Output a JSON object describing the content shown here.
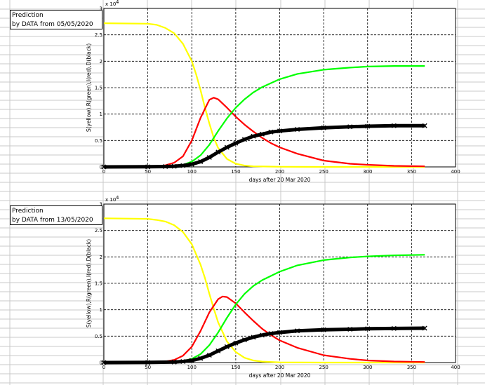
{
  "colors": {
    "susceptible": "#ffff00",
    "infected": "#ff0000",
    "recovered": "#00ff00",
    "deaths": "#000000",
    "sheet_grid": "#c8c8c8"
  },
  "chart_data": [
    {
      "type": "line",
      "note": [
        "Prediction",
        "by DATA from 05/05/2020"
      ],
      "xlabel": "days after 20  Mar 2020",
      "ylabel": "S(yellow),R(green),I(red),D(black)",
      "exponent_label": "x 10",
      "exponent_power": "4",
      "xlim": [
        0,
        400
      ],
      "ylim": [
        0,
        3
      ],
      "y_scale_factor": 10000,
      "xticks": [
        "0",
        "50",
        "100",
        "150",
        "200",
        "250",
        "300",
        "350",
        "400"
      ],
      "yticks": [
        "0",
        "0.5",
        "1",
        "1.5",
        "2",
        "2.5",
        "3"
      ],
      "grid": true,
      "series": [
        {
          "color": "#ffff00",
          "marker": "line",
          "x": [
            0,
            50,
            60,
            70,
            80,
            90,
            100,
            105,
            110,
            115,
            120,
            125,
            130,
            140,
            150,
            160,
            170,
            200,
            250,
            300,
            365
          ],
          "y": [
            2.72,
            2.71,
            2.69,
            2.63,
            2.53,
            2.33,
            2.0,
            1.75,
            1.45,
            1.12,
            0.82,
            0.55,
            0.36,
            0.15,
            0.06,
            0.025,
            0.01,
            0.002,
            0,
            0,
            0
          ]
        },
        {
          "color": "#ff0000",
          "marker": "line",
          "x": [
            0,
            50,
            60,
            70,
            80,
            90,
            100,
            110,
            120,
            125,
            130,
            140,
            150,
            160,
            170,
            180,
            190,
            200,
            220,
            250,
            280,
            300,
            330,
            365
          ],
          "y": [
            0,
            0.005,
            0.01,
            0.03,
            0.08,
            0.2,
            0.5,
            0.93,
            1.27,
            1.31,
            1.28,
            1.12,
            0.95,
            0.8,
            0.67,
            0.55,
            0.45,
            0.37,
            0.25,
            0.12,
            0.06,
            0.04,
            0.02,
            0.01
          ]
        },
        {
          "color": "#00ff00",
          "marker": "line",
          "x": [
            0,
            50,
            70,
            80,
            90,
            100,
            110,
            120,
            130,
            140,
            150,
            160,
            170,
            180,
            200,
            220,
            250,
            280,
            300,
            330,
            365
          ],
          "y": [
            0,
            0.003,
            0.01,
            0.02,
            0.04,
            0.1,
            0.22,
            0.42,
            0.68,
            0.92,
            1.12,
            1.28,
            1.41,
            1.51,
            1.66,
            1.76,
            1.84,
            1.88,
            1.9,
            1.91,
            1.91
          ]
        },
        {
          "color": "#000000",
          "marker": "cross",
          "x": [
            0,
            50,
            70,
            80,
            90,
            100,
            110,
            120,
            130,
            140,
            150,
            160,
            170,
            180,
            190,
            200,
            220,
            250,
            280,
            300,
            330,
            365
          ],
          "y": [
            0,
            0.002,
            0.006,
            0.012,
            0.025,
            0.05,
            0.1,
            0.18,
            0.28,
            0.37,
            0.45,
            0.52,
            0.58,
            0.62,
            0.66,
            0.68,
            0.71,
            0.74,
            0.76,
            0.77,
            0.78,
            0.78
          ]
        }
      ]
    },
    {
      "type": "line",
      "note": [
        "Prediction",
        "by DATA from 13/05/2020"
      ],
      "xlabel": "days after 20  Mar 2020",
      "ylabel": "S(yellow),R(green),I(red),D(black)",
      "exponent_label": "x 10",
      "exponent_power": "4",
      "xlim": [
        0,
        400
      ],
      "ylim": [
        0,
        3
      ],
      "y_scale_factor": 10000,
      "xticks": [
        "0",
        "50",
        "100",
        "150",
        "200",
        "250",
        "300",
        "350",
        "400"
      ],
      "yticks": [
        "0",
        "0.5",
        "1",
        "1.5",
        "2",
        "2.5",
        "3"
      ],
      "grid": true,
      "series": [
        {
          "color": "#ffff00",
          "marker": "line",
          "x": [
            0,
            50,
            60,
            70,
            80,
            90,
            100,
            110,
            115,
            120,
            125,
            130,
            140,
            150,
            160,
            170,
            180,
            200,
            250,
            300,
            365
          ],
          "y": [
            2.73,
            2.72,
            2.7,
            2.67,
            2.6,
            2.47,
            2.24,
            1.85,
            1.6,
            1.3,
            1.02,
            0.76,
            0.4,
            0.2,
            0.09,
            0.04,
            0.018,
            0.004,
            0,
            0,
            0
          ]
        },
        {
          "color": "#ff0000",
          "marker": "line",
          "x": [
            0,
            50,
            70,
            80,
            90,
            100,
            110,
            120,
            130,
            135,
            140,
            150,
            160,
            170,
            180,
            190,
            200,
            220,
            250,
            280,
            300,
            330,
            365
          ],
          "y": [
            0,
            0.004,
            0.02,
            0.05,
            0.13,
            0.3,
            0.6,
            0.95,
            1.2,
            1.25,
            1.24,
            1.12,
            0.95,
            0.79,
            0.64,
            0.52,
            0.42,
            0.28,
            0.14,
            0.07,
            0.04,
            0.02,
            0.01
          ]
        },
        {
          "color": "#00ff00",
          "marker": "line",
          "x": [
            0,
            50,
            80,
            90,
            100,
            110,
            120,
            130,
            140,
            150,
            160,
            170,
            180,
            200,
            220,
            250,
            280,
            300,
            330,
            365
          ],
          "y": [
            0,
            0.002,
            0.01,
            0.03,
            0.07,
            0.16,
            0.33,
            0.57,
            0.85,
            1.1,
            1.3,
            1.45,
            1.56,
            1.72,
            1.84,
            1.94,
            1.99,
            2.01,
            2.03,
            2.04
          ]
        },
        {
          "color": "#000000",
          "marker": "cross",
          "x": [
            0,
            50,
            80,
            90,
            100,
            110,
            120,
            130,
            140,
            150,
            160,
            170,
            180,
            190,
            200,
            220,
            250,
            280,
            300,
            330,
            365
          ],
          "y": [
            0,
            0.002,
            0.01,
            0.02,
            0.04,
            0.08,
            0.14,
            0.22,
            0.3,
            0.37,
            0.43,
            0.48,
            0.52,
            0.55,
            0.57,
            0.6,
            0.62,
            0.63,
            0.64,
            0.645,
            0.65
          ]
        }
      ]
    }
  ]
}
